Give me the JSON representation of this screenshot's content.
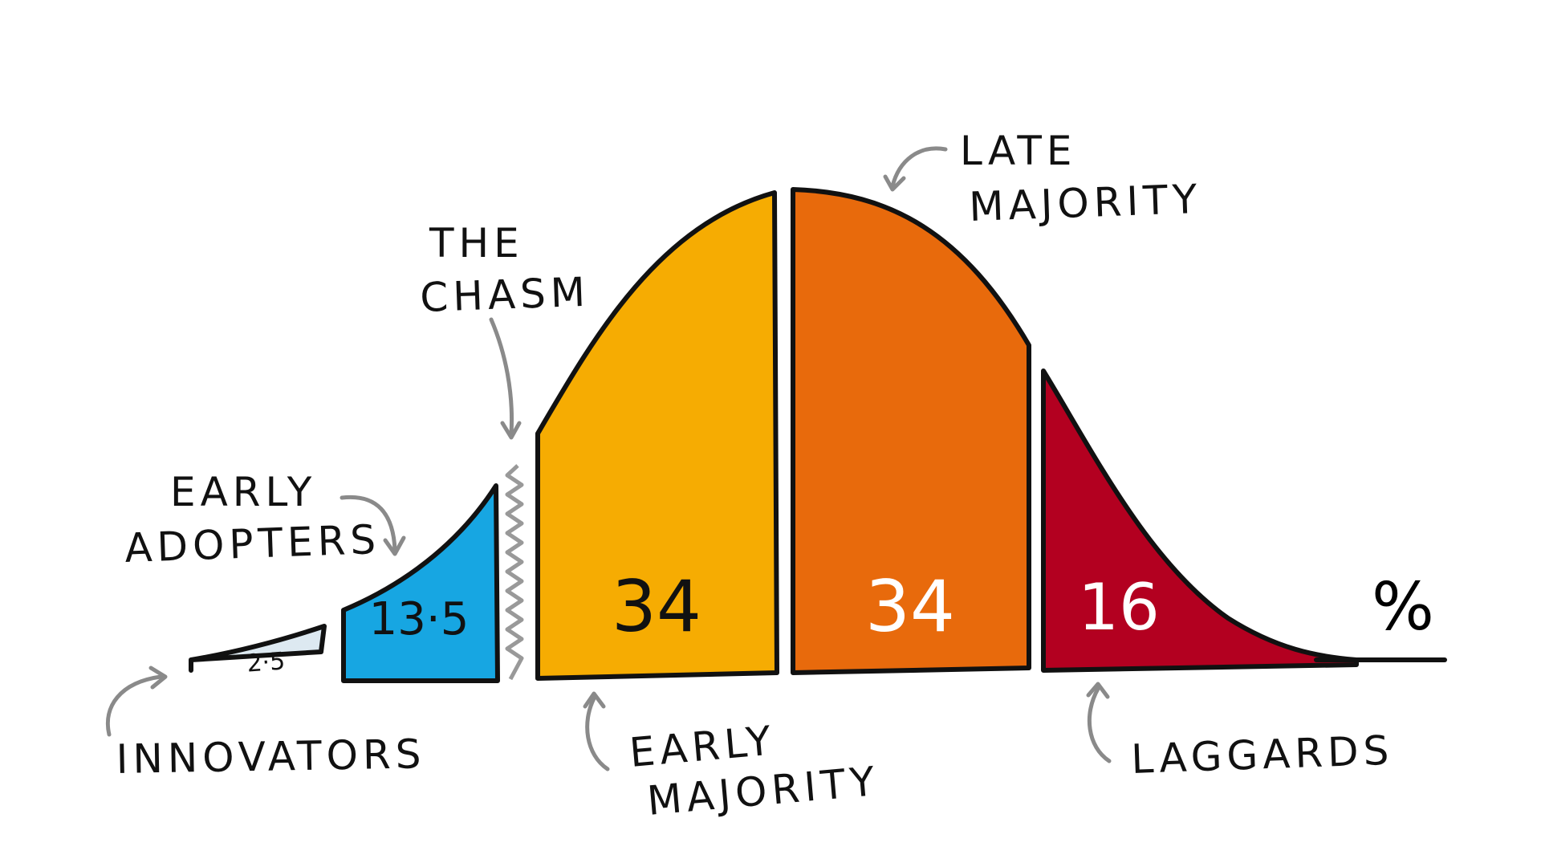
{
  "chart_data": {
    "type": "area",
    "unit_label": "%",
    "segments": [
      {
        "label": "INNOVATORS",
        "value": 2.5,
        "value_text": "2·5",
        "color": "#dde9f1",
        "value_color": "#111111"
      },
      {
        "label": "EARLY ADOPTERS",
        "label_lines": [
          "EARLY",
          "ADOPTERS"
        ],
        "value": 13.5,
        "value_text": "13·5",
        "color": "#17a6e2",
        "value_color": "#111111"
      },
      {
        "label": "EARLY MAJORITY",
        "label_lines": [
          "EARLY",
          "MAJORITY"
        ],
        "value": 34,
        "value_text": "34",
        "color": "#f6ac02",
        "value_color": "#111111"
      },
      {
        "label": "LATE MAJORITY",
        "label_lines": [
          "LATE",
          "MAJORITY"
        ],
        "value": 34,
        "value_text": "34",
        "color": "#e86a0c",
        "value_color": "#ffffff"
      },
      {
        "label": "LAGGARDS",
        "value": 16,
        "value_text": "16",
        "color": "#b30020",
        "value_color": "#ffffff"
      }
    ],
    "gap_label_lines": [
      "THE",
      "CHASM"
    ],
    "colors": {
      "outline": "#111111",
      "arrow": "#8a8a8a",
      "chasm": "#999999"
    }
  }
}
